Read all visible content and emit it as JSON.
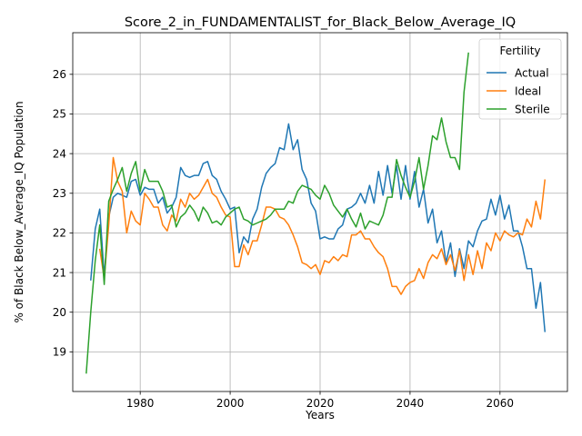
{
  "chart_data": {
    "type": "line",
    "title": "Score_2_in_FUNDAMENTALIST_for_Black_Below_Average_IQ",
    "xlabel": "Years",
    "ylabel": "% of Black Below_Average_IQ Population",
    "xlim": [
      1965,
      2075
    ],
    "ylim": [
      18.0,
      27.05
    ],
    "xticks": [
      1980,
      2000,
      2020,
      2040,
      2060
    ],
    "yticks": [
      19,
      20,
      21,
      22,
      23,
      24,
      25,
      26
    ],
    "grid": true,
    "legend": {
      "title": "Fertility",
      "placement": "top-right"
    },
    "series": [
      {
        "name": "Actual",
        "color": "#1f77b4",
        "points": [
          [
            1969,
            20.8
          ],
          [
            1970,
            22.1
          ],
          [
            1971,
            22.6
          ],
          [
            1972,
            20.9
          ],
          [
            1973,
            22.4
          ],
          [
            1974,
            22.9
          ],
          [
            1975,
            23.0
          ],
          [
            1976,
            22.95
          ],
          [
            1977,
            22.9
          ],
          [
            1978,
            23.3
          ],
          [
            1979,
            23.35
          ],
          [
            1980,
            22.95
          ],
          [
            1981,
            23.15
          ],
          [
            1982,
            23.1
          ],
          [
            1983,
            23.1
          ],
          [
            1984,
            22.75
          ],
          [
            1985,
            22.9
          ],
          [
            1986,
            22.5
          ],
          [
            1987,
            22.65
          ],
          [
            1988,
            22.9
          ],
          [
            1989,
            23.65
          ],
          [
            1990,
            23.45
          ],
          [
            1991,
            23.4
          ],
          [
            1992,
            23.45
          ],
          [
            1993,
            23.45
          ],
          [
            1994,
            23.75
          ],
          [
            1995,
            23.8
          ],
          [
            1996,
            23.45
          ],
          [
            1997,
            23.35
          ],
          [
            1998,
            23.05
          ],
          [
            1999,
            22.85
          ],
          [
            2000,
            22.6
          ],
          [
            2001,
            22.65
          ],
          [
            2002,
            21.5
          ],
          [
            2003,
            21.9
          ],
          [
            2004,
            21.75
          ],
          [
            2005,
            22.35
          ],
          [
            2006,
            22.6
          ],
          [
            2007,
            23.15
          ],
          [
            2008,
            23.5
          ],
          [
            2009,
            23.65
          ],
          [
            2010,
            23.75
          ],
          [
            2011,
            24.15
          ],
          [
            2012,
            24.1
          ],
          [
            2013,
            24.75
          ],
          [
            2014,
            24.1
          ],
          [
            2015,
            24.35
          ],
          [
            2016,
            23.6
          ],
          [
            2017,
            23.35
          ],
          [
            2018,
            22.75
          ],
          [
            2019,
            22.55
          ],
          [
            2020,
            21.85
          ],
          [
            2021,
            21.9
          ],
          [
            2022,
            21.85
          ],
          [
            2023,
            21.85
          ],
          [
            2024,
            22.1
          ],
          [
            2025,
            22.2
          ],
          [
            2026,
            22.6
          ],
          [
            2027,
            22.65
          ],
          [
            2028,
            22.75
          ],
          [
            2029,
            23.0
          ],
          [
            2030,
            22.75
          ],
          [
            2031,
            23.2
          ],
          [
            2032,
            22.75
          ],
          [
            2033,
            23.55
          ],
          [
            2034,
            22.95
          ],
          [
            2035,
            23.7
          ],
          [
            2036,
            23.0
          ],
          [
            2037,
            23.7
          ],
          [
            2038,
            22.85
          ],
          [
            2039,
            23.7
          ],
          [
            2040,
            22.85
          ],
          [
            2041,
            23.55
          ],
          [
            2042,
            22.65
          ],
          [
            2043,
            23.1
          ],
          [
            2044,
            22.25
          ],
          [
            2045,
            22.6
          ],
          [
            2046,
            21.75
          ],
          [
            2047,
            22.05
          ],
          [
            2048,
            21.25
          ],
          [
            2049,
            21.75
          ],
          [
            2050,
            20.9
          ],
          [
            2051,
            21.6
          ],
          [
            2052,
            21.1
          ],
          [
            2053,
            21.8
          ],
          [
            2054,
            21.65
          ],
          [
            2055,
            22.05
          ],
          [
            2056,
            22.3
          ],
          [
            2057,
            22.35
          ],
          [
            2058,
            22.85
          ],
          [
            2059,
            22.45
          ],
          [
            2060,
            22.95
          ],
          [
            2061,
            22.35
          ],
          [
            2062,
            22.7
          ],
          [
            2063,
            22.05
          ],
          [
            2064,
            22.05
          ],
          [
            2065,
            21.65
          ],
          [
            2066,
            21.1
          ],
          [
            2067,
            21.1
          ],
          [
            2068,
            20.1
          ],
          [
            2069,
            20.75
          ],
          [
            2070,
            19.5
          ]
        ]
      },
      {
        "name": "Ideal",
        "color": "#ff7f0e",
        "points": [
          [
            1971,
            21.6
          ],
          [
            1972,
            20.85
          ],
          [
            1973,
            22.2
          ],
          [
            1974,
            23.9
          ],
          [
            1975,
            23.3
          ],
          [
            1976,
            23.05
          ],
          [
            1977,
            22.0
          ],
          [
            1978,
            22.55
          ],
          [
            1979,
            22.3
          ],
          [
            1980,
            22.2
          ],
          [
            1981,
            23.0
          ],
          [
            1982,
            22.85
          ],
          [
            1983,
            22.65
          ],
          [
            1984,
            22.65
          ],
          [
            1985,
            22.2
          ],
          [
            1986,
            22.05
          ],
          [
            1987,
            22.45
          ],
          [
            1988,
            22.3
          ],
          [
            1989,
            22.85
          ],
          [
            1990,
            22.65
          ],
          [
            1991,
            23.0
          ],
          [
            1992,
            22.85
          ],
          [
            1993,
            22.95
          ],
          [
            1994,
            23.15
          ],
          [
            1995,
            23.35
          ],
          [
            1996,
            23.0
          ],
          [
            1997,
            22.9
          ],
          [
            1998,
            22.65
          ],
          [
            1999,
            22.45
          ],
          [
            2000,
            22.4
          ],
          [
            2001,
            21.15
          ],
          [
            2002,
            21.15
          ],
          [
            2003,
            21.7
          ],
          [
            2004,
            21.45
          ],
          [
            2005,
            21.8
          ],
          [
            2006,
            21.8
          ],
          [
            2007,
            22.2
          ],
          [
            2008,
            22.65
          ],
          [
            2009,
            22.65
          ],
          [
            2010,
            22.6
          ],
          [
            2011,
            22.4
          ],
          [
            2012,
            22.35
          ],
          [
            2013,
            22.2
          ],
          [
            2014,
            21.95
          ],
          [
            2015,
            21.65
          ],
          [
            2016,
            21.25
          ],
          [
            2017,
            21.2
          ],
          [
            2018,
            21.1
          ],
          [
            2019,
            21.2
          ],
          [
            2020,
            20.95
          ],
          [
            2021,
            21.3
          ],
          [
            2022,
            21.25
          ],
          [
            2023,
            21.4
          ],
          [
            2024,
            21.3
          ],
          [
            2025,
            21.45
          ],
          [
            2026,
            21.4
          ],
          [
            2027,
            21.95
          ],
          [
            2028,
            21.95
          ],
          [
            2029,
            22.05
          ],
          [
            2030,
            21.85
          ],
          [
            2031,
            21.85
          ],
          [
            2032,
            21.65
          ],
          [
            2033,
            21.5
          ],
          [
            2034,
            21.4
          ],
          [
            2035,
            21.1
          ],
          [
            2036,
            20.65
          ],
          [
            2037,
            20.65
          ],
          [
            2038,
            20.45
          ],
          [
            2039,
            20.65
          ],
          [
            2040,
            20.75
          ],
          [
            2041,
            20.8
          ],
          [
            2042,
            21.1
          ],
          [
            2043,
            20.85
          ],
          [
            2044,
            21.25
          ],
          [
            2045,
            21.45
          ],
          [
            2046,
            21.35
          ],
          [
            2047,
            21.6
          ],
          [
            2048,
            21.2
          ],
          [
            2049,
            21.45
          ],
          [
            2050,
            21.05
          ],
          [
            2051,
            21.55
          ],
          [
            2052,
            20.8
          ],
          [
            2053,
            21.45
          ],
          [
            2054,
            20.95
          ],
          [
            2055,
            21.55
          ],
          [
            2056,
            21.1
          ],
          [
            2057,
            21.75
          ],
          [
            2058,
            21.55
          ],
          [
            2059,
            22.0
          ],
          [
            2060,
            21.8
          ],
          [
            2061,
            22.05
          ],
          [
            2062,
            21.95
          ],
          [
            2063,
            21.9
          ],
          [
            2064,
            22.0
          ],
          [
            2065,
            21.95
          ],
          [
            2066,
            22.35
          ],
          [
            2067,
            22.15
          ],
          [
            2068,
            22.8
          ],
          [
            2069,
            22.35
          ],
          [
            2070,
            23.35
          ]
        ]
      },
      {
        "name": "Sterile",
        "color": "#2ca02c",
        "points": [
          [
            1968,
            18.45
          ],
          [
            1969,
            20.0
          ],
          [
            1970,
            21.3
          ],
          [
            1971,
            22.2
          ],
          [
            1972,
            20.7
          ],
          [
            1973,
            22.8
          ],
          [
            1974,
            23.1
          ],
          [
            1975,
            23.35
          ],
          [
            1976,
            23.65
          ],
          [
            1977,
            23.05
          ],
          [
            1978,
            23.5
          ],
          [
            1979,
            23.8
          ],
          [
            1980,
            23.05
          ],
          [
            1981,
            23.6
          ],
          [
            1982,
            23.3
          ],
          [
            1983,
            23.3
          ],
          [
            1984,
            23.3
          ],
          [
            1985,
            23.05
          ],
          [
            1986,
            22.65
          ],
          [
            1987,
            22.7
          ],
          [
            1988,
            22.15
          ],
          [
            1989,
            22.4
          ],
          [
            1990,
            22.5
          ],
          [
            1991,
            22.7
          ],
          [
            1992,
            22.55
          ],
          [
            1993,
            22.3
          ],
          [
            1994,
            22.65
          ],
          [
            1995,
            22.5
          ],
          [
            1996,
            22.25
          ],
          [
            1997,
            22.3
          ],
          [
            1998,
            22.2
          ],
          [
            1999,
            22.4
          ],
          [
            2000,
            22.5
          ],
          [
            2001,
            22.6
          ],
          [
            2002,
            22.65
          ],
          [
            2003,
            22.35
          ],
          [
            2004,
            22.3
          ],
          [
            2005,
            22.2
          ],
          [
            2006,
            22.25
          ],
          [
            2007,
            22.3
          ],
          [
            2008,
            22.35
          ],
          [
            2009,
            22.45
          ],
          [
            2010,
            22.6
          ],
          [
            2011,
            22.6
          ],
          [
            2012,
            22.6
          ],
          [
            2013,
            22.8
          ],
          [
            2014,
            22.75
          ],
          [
            2015,
            23.05
          ],
          [
            2016,
            23.2
          ],
          [
            2017,
            23.15
          ],
          [
            2018,
            23.1
          ],
          [
            2019,
            22.95
          ],
          [
            2020,
            22.85
          ],
          [
            2021,
            23.2
          ],
          [
            2022,
            23.0
          ],
          [
            2023,
            22.7
          ],
          [
            2024,
            22.55
          ],
          [
            2025,
            22.4
          ],
          [
            2026,
            22.6
          ],
          [
            2027,
            22.35
          ],
          [
            2028,
            22.15
          ],
          [
            2029,
            22.5
          ],
          [
            2030,
            22.1
          ],
          [
            2031,
            22.3
          ],
          [
            2032,
            22.25
          ],
          [
            2033,
            22.2
          ],
          [
            2034,
            22.45
          ],
          [
            2035,
            22.9
          ],
          [
            2036,
            22.9
          ],
          [
            2037,
            23.85
          ],
          [
            2038,
            23.45
          ],
          [
            2039,
            23.15
          ],
          [
            2040,
            22.9
          ],
          [
            2041,
            23.3
          ],
          [
            2042,
            23.9
          ],
          [
            2043,
            23.1
          ],
          [
            2044,
            23.7
          ],
          [
            2045,
            24.45
          ],
          [
            2046,
            24.35
          ],
          [
            2047,
            24.9
          ],
          [
            2048,
            24.3
          ],
          [
            2049,
            23.9
          ],
          [
            2050,
            23.9
          ],
          [
            2051,
            23.6
          ],
          [
            2052,
            25.55
          ],
          [
            2053,
            26.55
          ]
        ]
      }
    ]
  }
}
